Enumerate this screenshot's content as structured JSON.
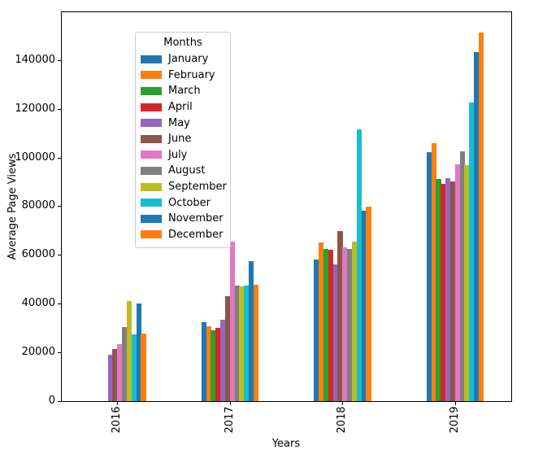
{
  "chart_data": {
    "type": "bar",
    "title": "",
    "xlabel": "Years",
    "ylabel": "Average Page Views",
    "categories": [
      "2016",
      "2017",
      "2018",
      "2019"
    ],
    "legend": {
      "title": "Months",
      "position": "upper-left"
    },
    "grid": false,
    "axis_color": "#000000",
    "background": "#ffffff",
    "ylim": [
      0,
      159300
    ],
    "yticks": [
      0,
      20000,
      40000,
      60000,
      80000,
      100000,
      120000,
      140000
    ],
    "series": [
      {
        "name": "January",
        "color": "#1f77b4",
        "values": [
          0,
          32500,
          58000,
          102200
        ]
      },
      {
        "name": "February",
        "color": "#ff7f0e",
        "values": [
          0,
          30600,
          65000,
          106000
        ]
      },
      {
        "name": "March",
        "color": "#2ca02c",
        "values": [
          0,
          29000,
          62600,
          91100
        ]
      },
      {
        "name": "April",
        "color": "#d62728",
        "values": [
          0,
          30200,
          62200,
          89200
        ]
      },
      {
        "name": "May",
        "color": "#9467bd",
        "values": [
          19000,
          33500,
          56200,
          91400
        ]
      },
      {
        "name": "June",
        "color": "#8c564b",
        "values": [
          21500,
          43000,
          69800,
          90200
        ]
      },
      {
        "name": "July",
        "color": "#e377c2",
        "values": [
          23500,
          65500,
          63200,
          97200
        ]
      },
      {
        "name": "August",
        "color": "#7f7f7f",
        "values": [
          30500,
          47500,
          62500,
          102500
        ]
      },
      {
        "name": "September",
        "color": "#bcbd22",
        "values": [
          41200,
          47000,
          65500,
          97000
        ]
      },
      {
        "name": "October",
        "color": "#17becf",
        "values": [
          27400,
          47300,
          111600,
          122700
        ]
      },
      {
        "name": "November",
        "color": "#1f77b4",
        "values": [
          40100,
          57500,
          78100,
          143300
        ]
      },
      {
        "name": "December",
        "color": "#ff7f0e",
        "values": [
          27700,
          47900,
          79700,
          151300
        ]
      }
    ]
  }
}
